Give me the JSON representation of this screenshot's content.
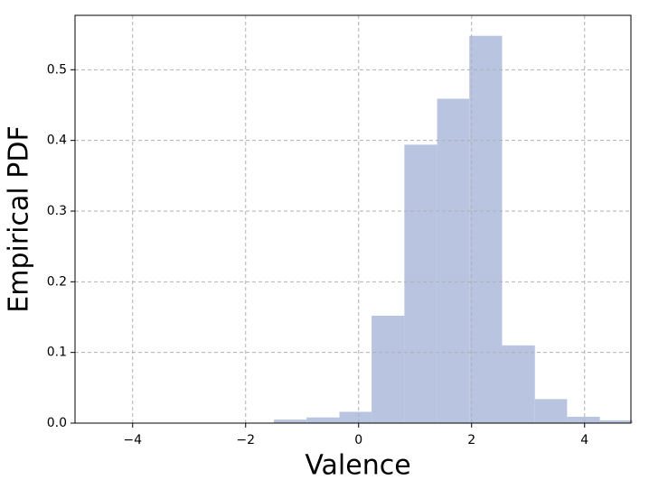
{
  "chart_data": {
    "type": "histogram",
    "x_label": "Valence",
    "y_label": "Empirical PDF",
    "bins": [
      -1.5,
      -0.92,
      -0.34,
      0.23,
      0.81,
      1.39,
      1.96,
      2.54,
      3.12,
      3.69,
      4.27,
      4.85
    ],
    "values": [
      0.005,
      0.008,
      0.016,
      0.152,
      0.394,
      0.459,
      0.548,
      0.11,
      0.034,
      0.009,
      0.004
    ],
    "color": "#b8c4e0",
    "xlim": [
      -5.02,
      4.82
    ],
    "ylim": [
      0,
      0.577
    ],
    "xticks": [
      {
        "value": -4,
        "label": "−4"
      },
      {
        "value": -2,
        "label": "−2"
      },
      0,
      2,
      4
    ],
    "yticks": [
      {
        "value": 0,
        "label": "0.0"
      },
      0.1,
      0.2,
      0.3,
      0.4,
      0.5
    ],
    "grid": true
  }
}
